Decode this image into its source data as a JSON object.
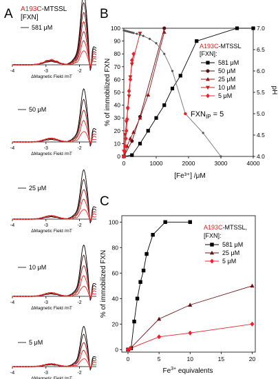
{
  "colors": {
    "axis": "#000000",
    "mut_red": "#dd1f1f",
    "black": "#000000",
    "dark_red": "#6b1010",
    "crimson": "#9a1515",
    "red": "#d41c1c",
    "bright_red": "#ef1f2a",
    "ph_grey": "#7d7d7d"
  },
  "panel_labels": {
    "a": "A",
    "b": "B",
    "c": "C"
  },
  "chart_data": [
    {
      "id": "A",
      "type": "line",
      "description_free": true,
      "mutant_label": "A193C",
      "mutant_suffix": "-MTSSL",
      "conc_header": "[FXN]",
      "xlabel": "ΔMagnetic Field /mT",
      "xlim": [
        -4,
        -1.5
      ],
      "xticks": [
        "-4",
        "-3",
        "-2"
      ],
      "subpanels": [
        {
          "label": "581 μM"
        },
        {
          "label": "50 μM"
        },
        {
          "label": "25 μM"
        },
        {
          "label": "10 μM"
        },
        {
          "label": "5 μM"
        }
      ]
    },
    {
      "id": "B",
      "type": "line",
      "xlabel": "[Fe³⁺] /μM",
      "ylabel": "% of immobilized FXN",
      "y2label": "pH",
      "xlim": [
        0,
        4000
      ],
      "ylim": [
        0,
        100
      ],
      "y2lim": [
        4.0,
        7.0
      ],
      "xticks": [
        "0",
        "1000",
        "2000",
        "3000",
        "4000"
      ],
      "yticks": [
        "0",
        "10",
        "20",
        "30",
        "40",
        "50",
        "60",
        "70",
        "80",
        "90",
        "100"
      ],
      "y2ticks": [
        "4.0",
        "4.5",
        "5.0",
        "5.5",
        "6.0",
        "6.5",
        "7.0"
      ],
      "legend_title_mut": "A193C",
      "legend_title_suffix": "-MTSSL",
      "legend_title2": "[FXN]:",
      "annotation_main": "FXN",
      "annotation_sub": "IP",
      "annotation_tail": " = 5",
      "series": [
        {
          "name": "581 μM",
          "color": "#000000",
          "marker": "square",
          "x": [
            0,
            250,
            500,
            750,
            1000,
            1250,
            1500,
            1750,
            2250,
            3500,
            4000
          ],
          "y": [
            0,
            1,
            10,
            20,
            30,
            40,
            53,
            63,
            90,
            100,
            100
          ]
        },
        {
          "name": "50 μM",
          "color": "#5a1010",
          "marker": "circle",
          "x": [
            0,
            250,
            500,
            1250
          ],
          "y": [
            0,
            12,
            31,
            100
          ]
        },
        {
          "name": "25 μM",
          "color": "#9a1515",
          "marker": "triangle-up",
          "x": [
            0,
            100,
            200,
            300,
            500,
            750,
            1250
          ],
          "y": [
            0,
            8,
            14,
            19,
            30,
            48,
            97
          ]
        },
        {
          "name": "10 μM",
          "color": "#d41c1c",
          "marker": "triangle-down",
          "x": [
            0,
            40,
            80,
            120,
            160,
            200,
            250,
            500
          ],
          "y": [
            4,
            17,
            27,
            37,
            47,
            62,
            72,
            96
          ]
        },
        {
          "name": "5 μM",
          "color": "#ef1f2a",
          "marker": "diamond",
          "x": [
            0,
            20,
            40,
            60,
            80,
            100,
            120,
            160,
            200,
            250,
            300
          ],
          "y": [
            0,
            4,
            8,
            14,
            20,
            29,
            38,
            51,
            60,
            75,
            80
          ]
        }
      ],
      "ph_curve": {
        "x": [
          0,
          50,
          100,
          150,
          200,
          250,
          300,
          400,
          500,
          600,
          800,
          1000,
          1250,
          1500,
          1900,
          2450,
          3000
        ],
        "y": [
          6.95,
          6.94,
          6.93,
          6.92,
          6.91,
          6.9,
          6.89,
          6.87,
          6.85,
          6.82,
          6.75,
          6.65,
          6.4,
          6.0,
          5.0,
          4.55,
          4.0
        ]
      },
      "ip_point": {
        "x": 1900,
        "y": 5.0
      }
    },
    {
      "id": "C",
      "type": "line",
      "xlabel_base": "Fe",
      "xlabel_sup": "3+",
      "xlabel_tail": " equivalents",
      "ylabel": "% of immobilized FXN",
      "xlim": [
        -1,
        20.5
      ],
      "ylim": [
        -2,
        105
      ],
      "xticks": [
        "0",
        "5",
        "10",
        "15",
        "20"
      ],
      "yticks": [
        "0",
        "20",
        "40",
        "60",
        "80",
        "100"
      ],
      "legend_title_mut": "A193C",
      "legend_title_suffix": "-MTSSL,",
      "legend_title2": "[FXN]:",
      "series": [
        {
          "name": "581 μM",
          "color": "#000000",
          "marker": "square",
          "x": [
            0,
            0.5,
            1,
            1.5,
            2,
            2.5,
            3,
            4,
            6,
            10
          ],
          "y": [
            0,
            1,
            22,
            40,
            53,
            62,
            75,
            90,
            100,
            100
          ]
        },
        {
          "name": "25 μM",
          "color": "#6b1010",
          "marker": "triangle-up",
          "x": [
            0,
            0.4,
            5,
            10,
            20
          ],
          "y": [
            0,
            1,
            24,
            35,
            50
          ]
        },
        {
          "name": "5 μM",
          "color": "#ef1f2a",
          "marker": "diamond",
          "x": [
            0,
            0.4,
            5,
            10,
            20
          ],
          "y": [
            0,
            1,
            10,
            13,
            20
          ]
        }
      ]
    }
  ]
}
